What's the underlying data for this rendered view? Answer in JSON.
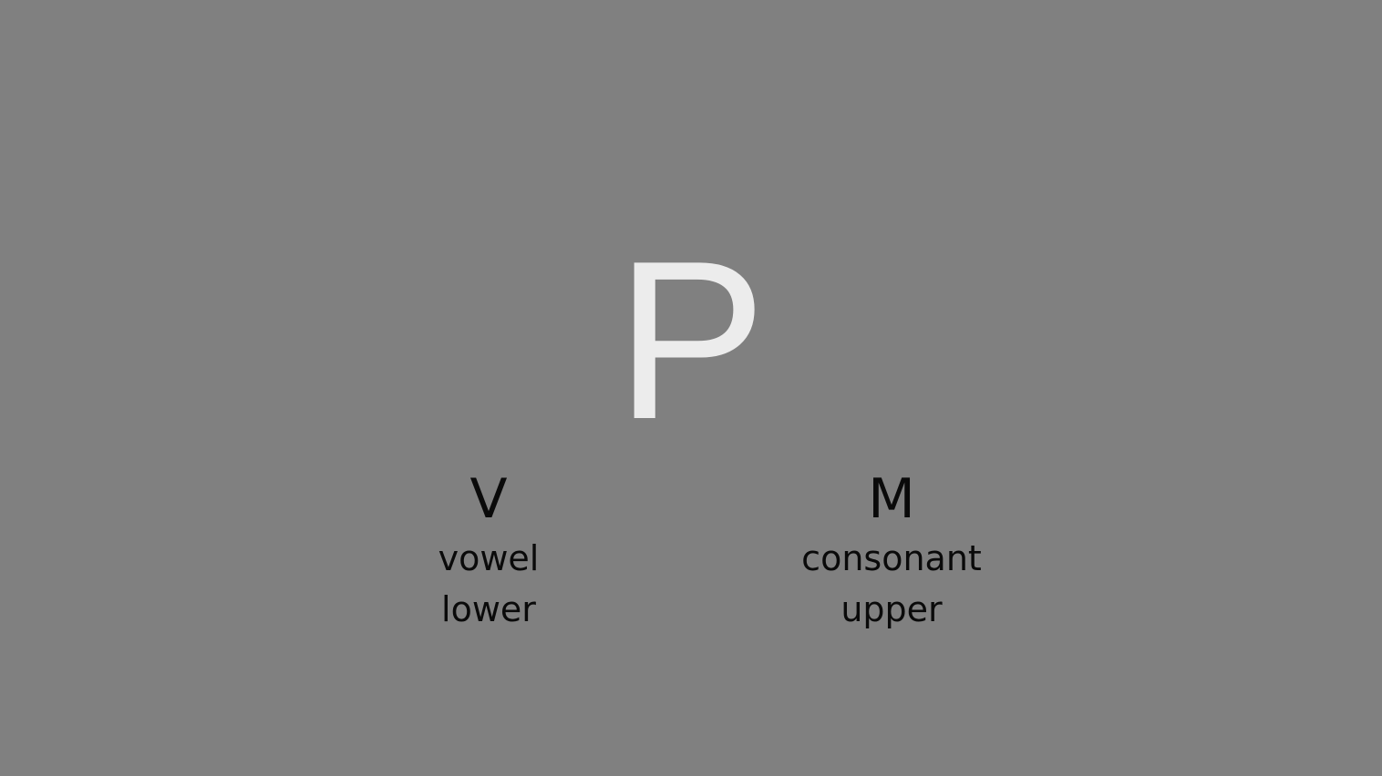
{
  "stimulus": {
    "letter": "P",
    "color": "#ececec"
  },
  "background_color": "#808080",
  "options": {
    "left": {
      "key": "V",
      "line1": "vowel",
      "line2": "lower"
    },
    "right": {
      "key": "M",
      "line1": "consonant",
      "line2": "upper"
    }
  }
}
